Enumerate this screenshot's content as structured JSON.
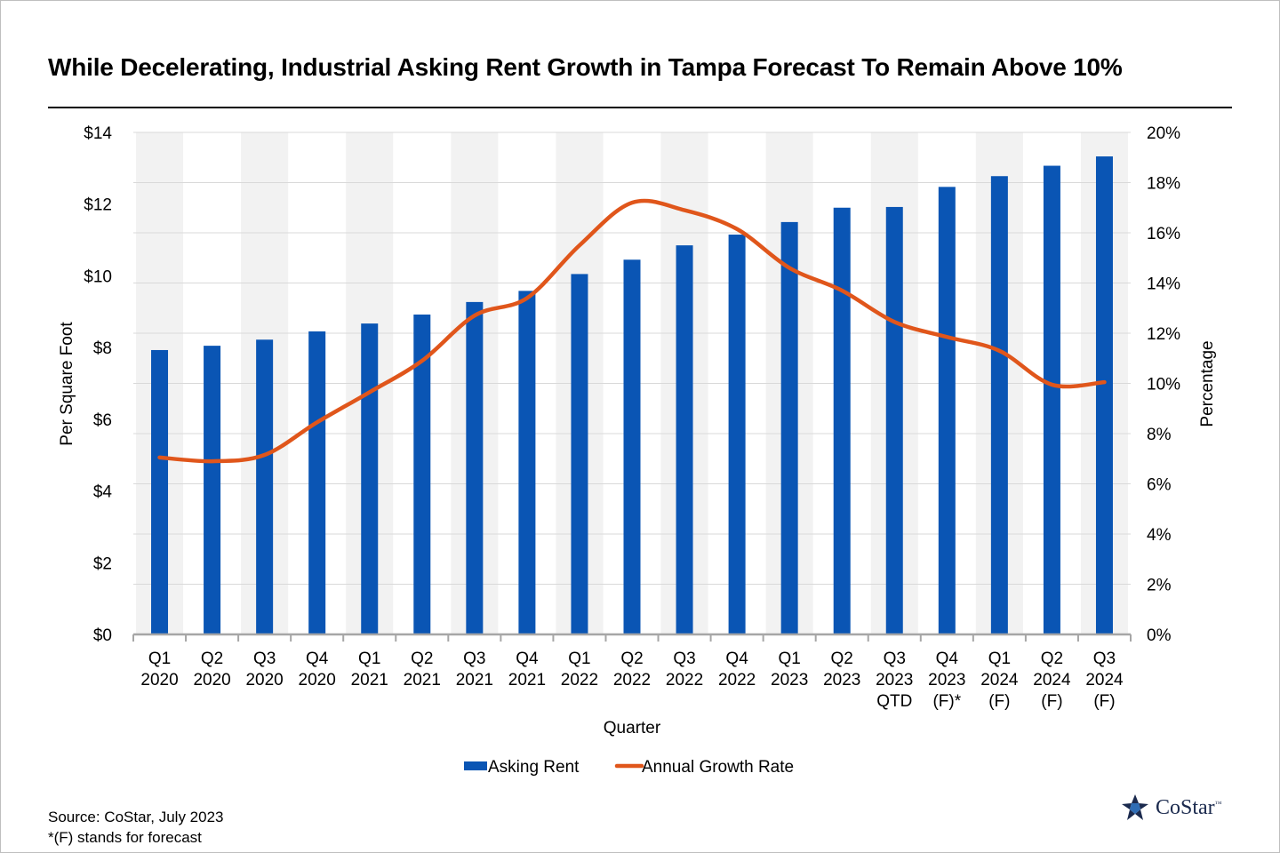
{
  "title": "While Decelerating, Industrial Asking Rent Growth in Tampa Forecast To Remain Above 10%",
  "footnote": {
    "source": "Source: CoStar, July 2023",
    "note": "*(F) stands for forecast"
  },
  "logo": {
    "name": "CoStar",
    "tm": "™",
    "icon": "costar-star-icon"
  },
  "colors": {
    "bar": "#0a55b4",
    "line": "#e0561b",
    "band": "#f2f2f2",
    "axis": "#a6a6a6",
    "grid": "#d9d9d9"
  },
  "chart_data": {
    "type": "bar",
    "title": "While Decelerating, Industrial Asking Rent Growth in Tampa Forecast To Remain Above 10%",
    "xlabel": "Quarter",
    "ylabel": "Per Square Foot",
    "y2label": "Percentage",
    "ylim": [
      0,
      14
    ],
    "y2lim": [
      0,
      20
    ],
    "yticks": [
      "$0",
      "$2",
      "$4",
      "$6",
      "$8",
      "$10",
      "$12",
      "$14"
    ],
    "y2ticks": [
      "0%",
      "2%",
      "4%",
      "6%",
      "8%",
      "10%",
      "12%",
      "14%",
      "16%",
      "18%",
      "20%"
    ],
    "categories": [
      [
        "Q1",
        "2020"
      ],
      [
        "Q2",
        "2020"
      ],
      [
        "Q3",
        "2020"
      ],
      [
        "Q4",
        "2020"
      ],
      [
        "Q1",
        "2021"
      ],
      [
        "Q2",
        "2021"
      ],
      [
        "Q3",
        "2021"
      ],
      [
        "Q4",
        "2021"
      ],
      [
        "Q1",
        "2022"
      ],
      [
        "Q2",
        "2022"
      ],
      [
        "Q3",
        "2022"
      ],
      [
        "Q4",
        "2022"
      ],
      [
        "Q1",
        "2023"
      ],
      [
        "Q2",
        "2023"
      ],
      [
        "Q3",
        "2023",
        "QTD"
      ],
      [
        "Q4",
        "2023",
        "(F)*"
      ],
      [
        "Q1",
        "2024",
        "(F)"
      ],
      [
        "Q2",
        "2024",
        "(F)"
      ],
      [
        "Q3",
        "2024",
        "(F)"
      ]
    ],
    "series": [
      {
        "name": "Asking Rent",
        "type": "bar",
        "axis": "left",
        "values": [
          7.93,
          8.05,
          8.22,
          8.45,
          8.67,
          8.92,
          9.27,
          9.58,
          10.05,
          10.45,
          10.85,
          11.15,
          11.5,
          11.9,
          11.92,
          12.48,
          12.78,
          13.07,
          13.33
        ]
      },
      {
        "name": "Annual Growth Rate",
        "type": "line",
        "axis": "right",
        "values": [
          7.05,
          6.9,
          7.15,
          8.45,
          9.65,
          10.9,
          12.7,
          13.4,
          15.5,
          17.2,
          16.9,
          16.15,
          14.6,
          13.7,
          12.45,
          11.85,
          11.3,
          9.95,
          10.05
        ]
      }
    ],
    "legend": [
      "Asking Rent",
      "Annual Growth Rate"
    ],
    "legend_position": "bottom",
    "alternating_bands": true
  }
}
